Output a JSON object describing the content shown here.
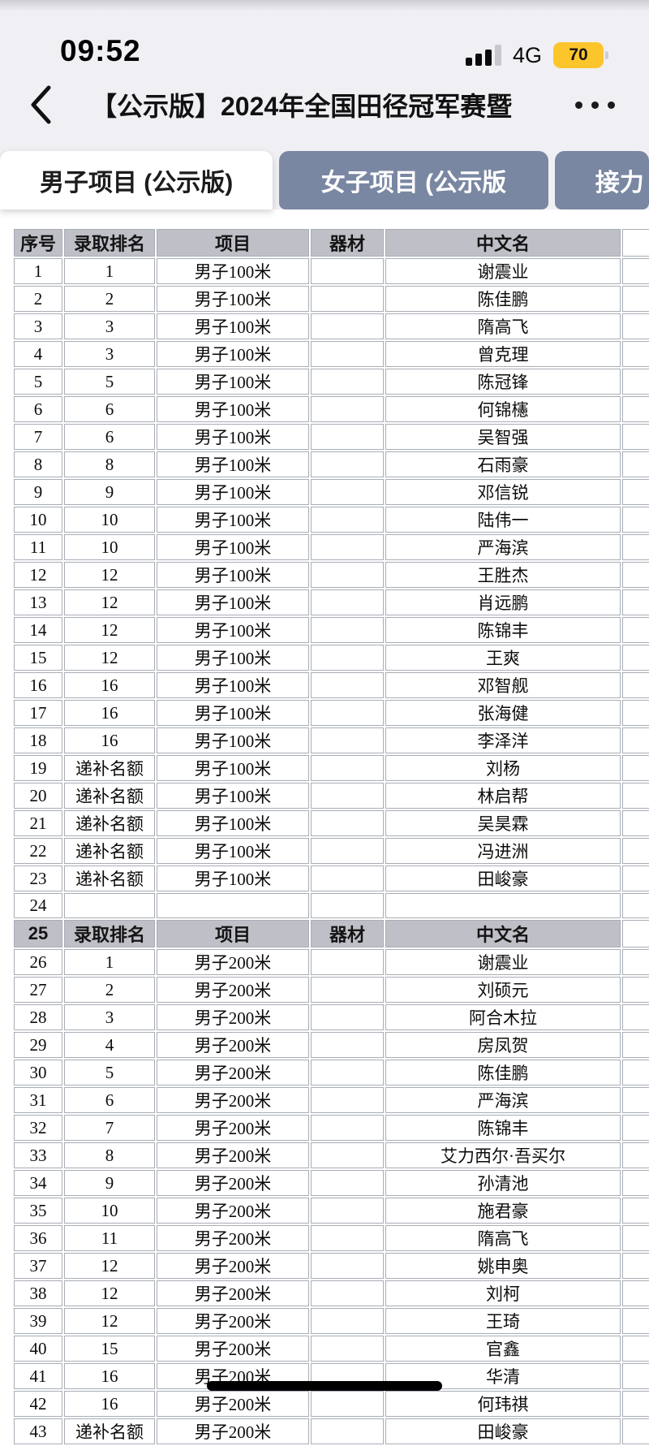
{
  "status_bar": {
    "time": "09:52",
    "network": "4G",
    "battery_percent": "70"
  },
  "nav_bar": {
    "title": "【公示版】2024年全国田径冠军赛暨"
  },
  "tabs": [
    {
      "label": "男子项目 (公示版)",
      "active": true
    },
    {
      "label": "女子项目 (公示版",
      "active": false
    },
    {
      "label": "接力",
      "active": false
    }
  ],
  "table": {
    "columns": [
      "seq",
      "rank",
      "event",
      "equipment",
      "name"
    ],
    "column_headers": [
      "序号",
      "录取排名",
      "项目",
      "器材",
      "中文名"
    ],
    "rows": [
      {
        "header": true,
        "cells": [
          "序号",
          "录取排名",
          "项目",
          "器材",
          "中文名"
        ]
      },
      {
        "cells": [
          "1",
          "1",
          "男子100米",
          "",
          "谢震业"
        ]
      },
      {
        "cells": [
          "2",
          "2",
          "男子100米",
          "",
          "陈佳鹏"
        ]
      },
      {
        "cells": [
          "3",
          "3",
          "男子100米",
          "",
          "隋高飞"
        ]
      },
      {
        "cells": [
          "4",
          "3",
          "男子100米",
          "",
          "曾克理"
        ]
      },
      {
        "cells": [
          "5",
          "5",
          "男子100米",
          "",
          "陈冠锋"
        ]
      },
      {
        "cells": [
          "6",
          "6",
          "男子100米",
          "",
          "何锦櫶"
        ]
      },
      {
        "cells": [
          "7",
          "6",
          "男子100米",
          "",
          "吴智强"
        ]
      },
      {
        "cells": [
          "8",
          "8",
          "男子100米",
          "",
          "石雨豪"
        ]
      },
      {
        "cells": [
          "9",
          "9",
          "男子100米",
          "",
          "邓信锐"
        ]
      },
      {
        "cells": [
          "10",
          "10",
          "男子100米",
          "",
          "陆伟一"
        ]
      },
      {
        "cells": [
          "11",
          "10",
          "男子100米",
          "",
          "严海滨"
        ]
      },
      {
        "cells": [
          "12",
          "12",
          "男子100米",
          "",
          "王胜杰"
        ]
      },
      {
        "cells": [
          "13",
          "12",
          "男子100米",
          "",
          "肖远鹏"
        ]
      },
      {
        "cells": [
          "14",
          "12",
          "男子100米",
          "",
          "陈锦丰"
        ]
      },
      {
        "cells": [
          "15",
          "12",
          "男子100米",
          "",
          "王爽"
        ]
      },
      {
        "cells": [
          "16",
          "16",
          "男子100米",
          "",
          "邓智舰"
        ]
      },
      {
        "cells": [
          "17",
          "16",
          "男子100米",
          "",
          "张海健"
        ]
      },
      {
        "cells": [
          "18",
          "16",
          "男子100米",
          "",
          "李泽洋"
        ]
      },
      {
        "cells": [
          "19",
          "递补名额",
          "男子100米",
          "",
          "刘杨"
        ]
      },
      {
        "cells": [
          "20",
          "递补名额",
          "男子100米",
          "",
          "林启帮"
        ]
      },
      {
        "cells": [
          "21",
          "递补名额",
          "男子100米",
          "",
          "吴昊霖"
        ]
      },
      {
        "cells": [
          "22",
          "递补名额",
          "男子100米",
          "",
          "冯进洲"
        ]
      },
      {
        "cells": [
          "23",
          "递补名额",
          "男子100米",
          "",
          "田峻豪"
        ]
      },
      {
        "cells": [
          "24",
          "",
          "",
          "",
          ""
        ]
      },
      {
        "header": true,
        "cells": [
          "25",
          "录取排名",
          "项目",
          "器材",
          "中文名"
        ]
      },
      {
        "cells": [
          "26",
          "1",
          "男子200米",
          "",
          "谢震业"
        ]
      },
      {
        "cells": [
          "27",
          "2",
          "男子200米",
          "",
          "刘硕元"
        ]
      },
      {
        "cells": [
          "28",
          "3",
          "男子200米",
          "",
          "阿合木拉"
        ]
      },
      {
        "cells": [
          "29",
          "4",
          "男子200米",
          "",
          "房凤贺"
        ]
      },
      {
        "cells": [
          "30",
          "5",
          "男子200米",
          "",
          "陈佳鹏"
        ]
      },
      {
        "cells": [
          "31",
          "6",
          "男子200米",
          "",
          "严海滨"
        ]
      },
      {
        "cells": [
          "32",
          "7",
          "男子200米",
          "",
          "陈锦丰"
        ]
      },
      {
        "cells": [
          "33",
          "8",
          "男子200米",
          "",
          "艾力西尔·吾买尔"
        ]
      },
      {
        "cells": [
          "34",
          "9",
          "男子200米",
          "",
          "孙清池"
        ]
      },
      {
        "cells": [
          "35",
          "10",
          "男子200米",
          "",
          "施君豪"
        ]
      },
      {
        "cells": [
          "36",
          "11",
          "男子200米",
          "",
          "隋高飞"
        ]
      },
      {
        "cells": [
          "37",
          "12",
          "男子200米",
          "",
          "姚申奥"
        ]
      },
      {
        "cells": [
          "38",
          "12",
          "男子200米",
          "",
          "刘柯"
        ]
      },
      {
        "cells": [
          "39",
          "12",
          "男子200米",
          "",
          "王琦"
        ]
      },
      {
        "cells": [
          "40",
          "15",
          "男子200米",
          "",
          "官鑫"
        ]
      },
      {
        "cells": [
          "41",
          "16",
          "男子200米",
          "",
          "华清"
        ]
      },
      {
        "cells": [
          "42",
          "16",
          "男子200米",
          "",
          "何玮祺"
        ]
      },
      {
        "cells": [
          "43",
          "递补名额",
          "男子200米",
          "",
          "田峻豪"
        ]
      }
    ]
  },
  "colors": {
    "status_bg": "#F0EFF3",
    "tab_inactive": "#7A87A2",
    "tab_active_bg": "#FFFFFF",
    "table_header_bg": "#BFC0C7",
    "grid_border": "#A8ADB6",
    "battery": "#FDC52C"
  }
}
